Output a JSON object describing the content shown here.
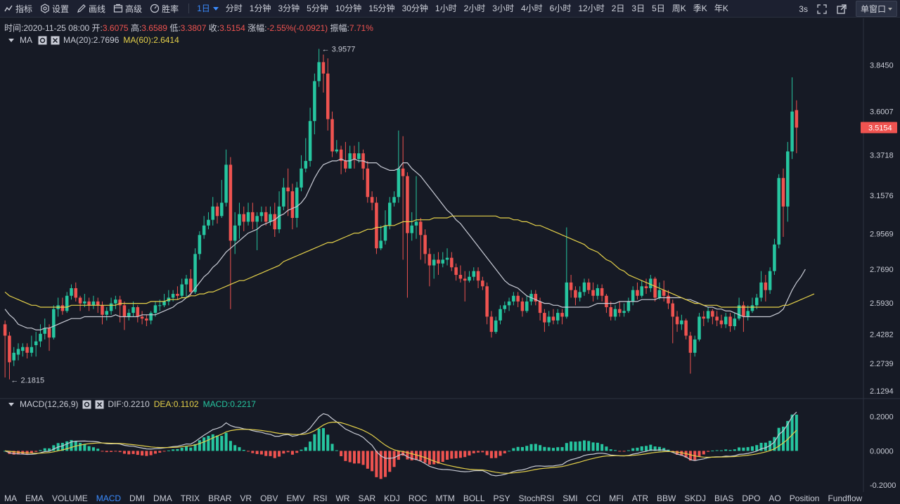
{
  "toolbar": {
    "tools": [
      {
        "label": "指标",
        "icon": "indicator-icon"
      },
      {
        "label": "设置",
        "icon": "settings-icon"
      },
      {
        "label": "画线",
        "icon": "draw-line-icon"
      },
      {
        "label": "高级",
        "icon": "advanced-icon"
      },
      {
        "label": "胜率",
        "icon": "win-rate-icon"
      }
    ],
    "active_interval": "1日",
    "intervals": [
      "分时",
      "1分钟",
      "3分钟",
      "5分钟",
      "10分钟",
      "15分钟",
      "30分钟",
      "1小时",
      "2小时",
      "3小时",
      "4小时",
      "6小时",
      "12小时",
      "2日",
      "3日",
      "5日",
      "周K",
      "季K",
      "年K"
    ],
    "refresh": "3s",
    "window_mode": "单窗口"
  },
  "info": {
    "time_label": "时间:",
    "time": "2020-11-25 08:00",
    "open_label": "开:",
    "open": "3.6075",
    "high_label": "高:",
    "high": "3.6589",
    "low_label": "低:",
    "low": "3.3807",
    "close_label": "收:",
    "close": "3.5154",
    "change_label": "涨幅:",
    "change": "-2.55%(-0.0921)",
    "amp_label": "振幅:",
    "amp": "7.71%"
  },
  "ma_legend": {
    "name": "MA",
    "ma20": "MA(20):2.7696",
    "ma60": "MA(60):2.6414"
  },
  "macd_legend": {
    "name": "MACD(12,26,9)",
    "dif": "DIF:0.2210",
    "dea": "DEA:0.1102",
    "macd": "MACD:0.2217"
  },
  "price_axis": {
    "ticks": [
      "3.8450",
      "3.6007",
      "3.3718",
      "3.1576",
      "2.9569",
      "2.7690",
      "2.5930",
      "2.4282",
      "2.2739",
      "2.1294"
    ],
    "current": "3.5154"
  },
  "macd_axis": {
    "ticks": [
      "0.2000",
      "0.0000",
      "-0.2000"
    ]
  },
  "annotations": {
    "high": "3.9577",
    "low": "2.1815"
  },
  "colors": {
    "up": "#26c6a0",
    "down": "#ef5350",
    "ma20": "#c9ccd6",
    "ma60": "#e5d14a",
    "accent": "#3b8cff",
    "background": "#161a25"
  },
  "chart_data": {
    "type": "candlestick",
    "candles": [
      [
        2.48,
        2.42,
        2.5,
        2.2
      ],
      [
        2.42,
        2.28,
        2.44,
        2.19
      ],
      [
        2.29,
        2.33,
        2.36,
        2.26
      ],
      [
        2.32,
        2.35,
        2.38,
        2.29
      ],
      [
        2.34,
        2.36,
        2.38,
        2.31
      ],
      [
        2.36,
        2.33,
        2.38,
        2.3
      ],
      [
        2.33,
        2.36,
        2.42,
        2.31
      ],
      [
        2.37,
        2.39,
        2.44,
        2.31
      ],
      [
        2.39,
        2.43,
        2.48,
        2.36
      ],
      [
        2.43,
        2.46,
        2.51,
        2.4
      ],
      [
        2.46,
        2.41,
        2.48,
        2.34
      ],
      [
        2.41,
        2.56,
        2.58,
        2.4
      ],
      [
        2.56,
        2.58,
        2.62,
        2.52
      ],
      [
        2.58,
        2.55,
        2.62,
        2.53
      ],
      [
        2.55,
        2.63,
        2.65,
        2.54
      ],
      [
        2.63,
        2.67,
        2.69,
        2.61
      ],
      [
        2.67,
        2.62,
        2.7,
        2.6
      ],
      [
        2.62,
        2.59,
        2.63,
        2.55
      ],
      [
        2.59,
        2.6,
        2.64,
        2.57
      ],
      [
        2.6,
        2.58,
        2.62,
        2.55
      ],
      [
        2.58,
        2.6,
        2.63,
        2.56
      ],
      [
        2.6,
        2.58,
        2.62,
        2.54
      ],
      [
        2.58,
        2.53,
        2.6,
        2.48
      ],
      [
        2.53,
        2.55,
        2.57,
        2.5
      ],
      [
        2.55,
        2.59,
        2.62,
        2.53
      ],
      [
        2.59,
        2.61,
        2.63,
        2.56
      ],
      [
        2.61,
        2.58,
        2.63,
        2.49
      ],
      [
        2.58,
        2.52,
        2.6,
        2.45
      ],
      [
        2.52,
        2.54,
        2.56,
        2.5
      ],
      [
        2.54,
        2.57,
        2.6,
        2.52
      ],
      [
        2.57,
        2.52,
        2.58,
        2.49
      ],
      [
        2.52,
        2.51,
        2.55,
        2.48
      ],
      [
        2.51,
        2.5,
        2.53,
        2.47
      ],
      [
        2.5,
        2.54,
        2.55,
        2.48
      ],
      [
        2.54,
        2.58,
        2.6,
        2.52
      ],
      [
        2.58,
        2.58,
        2.61,
        2.55
      ],
      [
        2.58,
        2.6,
        2.64,
        2.57
      ],
      [
        2.6,
        2.62,
        2.66,
        2.58
      ],
      [
        2.62,
        2.64,
        2.66,
        2.6
      ],
      [
        2.64,
        2.63,
        2.68,
        2.61
      ],
      [
        2.63,
        2.69,
        2.72,
        2.62
      ],
      [
        2.69,
        2.72,
        2.74,
        2.62
      ],
      [
        2.72,
        2.65,
        2.77,
        2.63
      ],
      [
        2.65,
        2.85,
        2.88,
        2.64
      ],
      [
        2.85,
        2.95,
        2.97,
        2.82
      ],
      [
        2.95,
        3.0,
        3.05,
        2.93
      ],
      [
        3.0,
        3.03,
        3.07,
        2.98
      ],
      [
        3.03,
        3.1,
        3.15,
        3.0
      ],
      [
        3.1,
        3.05,
        3.12,
        3.01
      ],
      [
        3.05,
        3.12,
        3.24,
        3.04
      ],
      [
        3.12,
        3.32,
        3.4,
        3.1
      ],
      [
        3.32,
        2.92,
        3.36,
        2.56
      ],
      [
        2.92,
        3.0,
        3.07,
        2.85
      ],
      [
        3.0,
        3.06,
        3.12,
        2.93
      ],
      [
        3.06,
        3.02,
        3.1,
        2.97
      ],
      [
        3.02,
        3.07,
        3.12,
        3.0
      ],
      [
        3.07,
        3.02,
        3.12,
        2.98
      ],
      [
        3.02,
        3.05,
        3.07,
        2.87
      ],
      [
        3.05,
        3.07,
        3.1,
        3.02
      ],
      [
        3.07,
        3.02,
        3.1,
        3.0
      ],
      [
        3.02,
        3.06,
        3.1,
        3.0
      ],
      [
        3.06,
        2.98,
        3.12,
        2.94
      ],
      [
        2.98,
        3.1,
        3.18,
        2.96
      ],
      [
        3.1,
        3.2,
        3.25,
        3.08
      ],
      [
        3.2,
        3.18,
        3.3,
        3.05
      ],
      [
        3.18,
        3.04,
        3.22,
        2.98
      ],
      [
        3.04,
        3.2,
        3.23,
        2.99
      ],
      [
        3.2,
        3.3,
        3.37,
        3.18
      ],
      [
        3.3,
        3.34,
        3.46,
        3.28
      ],
      [
        3.34,
        3.55,
        3.62,
        3.31
      ],
      [
        3.55,
        3.76,
        3.8,
        3.48
      ],
      [
        3.76,
        3.86,
        3.93,
        3.73
      ],
      [
        3.86,
        3.8,
        3.9,
        3.7
      ],
      [
        3.8,
        3.56,
        3.88,
        3.5
      ],
      [
        3.56,
        3.39,
        3.6,
        3.36
      ],
      [
        3.39,
        3.4,
        3.45,
        3.38
      ],
      [
        3.4,
        3.34,
        3.42,
        3.27
      ],
      [
        3.34,
        3.3,
        3.44,
        3.28
      ],
      [
        3.3,
        3.38,
        3.42,
        3.3
      ],
      [
        3.38,
        3.35,
        3.42,
        3.3
      ],
      [
        3.35,
        3.38,
        3.44,
        3.33
      ],
      [
        3.38,
        3.3,
        3.4,
        3.24
      ],
      [
        3.3,
        3.15,
        3.34,
        3.12
      ],
      [
        3.15,
        3.12,
        3.18,
        3.08
      ],
      [
        3.12,
        2.88,
        3.15,
        2.85
      ],
      [
        2.88,
        2.92,
        3.0,
        2.87
      ],
      [
        2.92,
        3.0,
        3.08,
        2.9
      ],
      [
        3.0,
        3.12,
        3.15,
        2.98
      ],
      [
        3.12,
        3.15,
        3.18,
        3.1
      ],
      [
        3.15,
        3.3,
        3.5,
        3.12
      ],
      [
        3.3,
        3.26,
        3.47,
        2.82
      ],
      [
        3.26,
        2.96,
        3.28,
        2.62
      ],
      [
        2.96,
        3.0,
        3.07,
        2.92
      ],
      [
        3.0,
        3.02,
        3.26,
        2.93
      ],
      [
        3.02,
        2.95,
        3.04,
        2.82
      ],
      [
        2.95,
        2.85,
        2.98,
        2.8
      ],
      [
        2.85,
        2.79,
        2.88,
        2.68
      ],
      [
        2.79,
        2.82,
        2.85,
        2.72
      ],
      [
        2.82,
        2.8,
        2.86,
        2.74
      ],
      [
        2.8,
        2.82,
        2.86,
        2.78
      ],
      [
        2.82,
        2.83,
        2.88,
        2.79
      ],
      [
        2.83,
        2.78,
        2.86,
        2.76
      ],
      [
        2.78,
        2.74,
        2.8,
        2.71
      ],
      [
        2.74,
        2.72,
        2.79,
        2.7
      ],
      [
        2.72,
        2.71,
        2.76,
        2.6
      ],
      [
        2.71,
        2.73,
        2.76,
        2.7
      ],
      [
        2.73,
        2.76,
        2.78,
        2.71
      ],
      [
        2.76,
        2.71,
        2.78,
        2.67
      ],
      [
        2.71,
        2.68,
        2.73,
        2.66
      ],
      [
        2.68,
        2.52,
        2.7,
        2.48
      ],
      [
        2.52,
        2.44,
        2.55,
        2.41
      ],
      [
        2.44,
        2.5,
        2.52,
        2.43
      ],
      [
        2.5,
        2.56,
        2.58,
        2.48
      ],
      [
        2.56,
        2.58,
        2.6,
        2.54
      ],
      [
        2.58,
        2.6,
        2.62,
        2.55
      ],
      [
        2.6,
        2.63,
        2.65,
        2.58
      ],
      [
        2.63,
        2.6,
        2.65,
        2.57
      ],
      [
        2.6,
        2.55,
        2.62,
        2.52
      ],
      [
        2.55,
        2.6,
        2.63,
        2.54
      ],
      [
        2.6,
        2.64,
        2.66,
        2.58
      ],
      [
        2.64,
        2.6,
        2.66,
        2.58
      ],
      [
        2.6,
        2.54,
        2.62,
        2.5
      ],
      [
        2.54,
        2.49,
        2.56,
        2.44
      ],
      [
        2.49,
        2.52,
        2.55,
        2.47
      ],
      [
        2.52,
        2.5,
        2.56,
        2.48
      ],
      [
        2.5,
        2.54,
        2.56,
        2.48
      ],
      [
        2.54,
        2.52,
        2.56,
        2.48
      ],
      [
        2.52,
        2.7,
        2.99,
        2.51
      ],
      [
        2.7,
        2.66,
        2.74,
        2.62
      ],
      [
        2.66,
        2.62,
        2.68,
        2.58
      ],
      [
        2.62,
        2.65,
        2.68,
        2.6
      ],
      [
        2.65,
        2.7,
        2.72,
        2.63
      ],
      [
        2.7,
        2.66,
        2.72,
        2.64
      ],
      [
        2.66,
        2.63,
        2.7,
        2.6
      ],
      [
        2.63,
        2.67,
        2.69,
        2.61
      ],
      [
        2.67,
        2.63,
        2.69,
        2.6
      ],
      [
        2.63,
        2.57,
        2.64,
        2.54
      ],
      [
        2.57,
        2.52,
        2.6,
        2.5
      ],
      [
        2.52,
        2.56,
        2.58,
        2.5
      ],
      [
        2.56,
        2.54,
        2.6,
        2.52
      ],
      [
        2.54,
        2.55,
        2.59,
        2.52
      ],
      [
        2.55,
        2.6,
        2.62,
        2.54
      ],
      [
        2.6,
        2.66,
        2.68,
        2.58
      ],
      [
        2.66,
        2.63,
        2.7,
        2.61
      ],
      [
        2.63,
        2.68,
        2.71,
        2.62
      ],
      [
        2.68,
        2.67,
        2.72,
        2.64
      ],
      [
        2.67,
        2.72,
        2.74,
        2.65
      ],
      [
        2.72,
        2.62,
        2.73,
        2.6
      ],
      [
        2.62,
        2.66,
        2.7,
        2.61
      ],
      [
        2.66,
        2.63,
        2.71,
        2.6
      ],
      [
        2.63,
        2.59,
        2.66,
        2.56
      ],
      [
        2.59,
        2.52,
        2.61,
        2.38
      ],
      [
        2.52,
        2.48,
        2.55,
        2.44
      ],
      [
        2.48,
        2.5,
        2.53,
        2.45
      ],
      [
        2.5,
        2.42,
        2.51,
        2.4
      ],
      [
        2.42,
        2.33,
        2.44,
        2.22
      ],
      [
        2.33,
        2.4,
        2.42,
        2.31
      ],
      [
        2.4,
        2.52,
        2.54,
        2.39
      ],
      [
        2.52,
        2.51,
        2.55,
        2.47
      ],
      [
        2.51,
        2.55,
        2.57,
        2.49
      ],
      [
        2.55,
        2.52,
        2.56,
        2.48
      ],
      [
        2.52,
        2.5,
        2.55,
        2.47
      ],
      [
        2.5,
        2.48,
        2.53,
        2.46
      ],
      [
        2.48,
        2.52,
        2.54,
        2.46
      ],
      [
        2.52,
        2.47,
        2.54,
        2.44
      ],
      [
        2.47,
        2.51,
        2.54,
        2.45
      ],
      [
        2.51,
        2.58,
        2.62,
        2.5
      ],
      [
        2.58,
        2.52,
        2.6,
        2.44
      ],
      [
        2.52,
        2.55,
        2.58,
        2.5
      ],
      [
        2.55,
        2.58,
        2.62,
        2.54
      ],
      [
        2.58,
        2.62,
        2.64,
        2.56
      ],
      [
        2.62,
        2.7,
        2.76,
        2.6
      ],
      [
        2.7,
        2.66,
        2.74,
        2.6
      ],
      [
        2.66,
        2.76,
        2.78,
        2.64
      ],
      [
        2.76,
        2.9,
        2.93,
        2.74
      ],
      [
        2.9,
        3.25,
        3.27,
        2.88
      ],
      [
        3.25,
        3.1,
        3.3,
        2.94
      ],
      [
        3.1,
        3.39,
        3.44,
        3.02
      ],
      [
        3.39,
        3.6,
        3.78,
        3.35
      ],
      [
        3.6075,
        3.5154,
        3.6589,
        3.3807
      ]
    ],
    "ma20": [
      2.56,
      2.53,
      2.51,
      2.48,
      2.47,
      2.46,
      2.46,
      2.45,
      2.45,
      2.46,
      2.46,
      2.47,
      2.48,
      2.49,
      2.5,
      2.51,
      2.51,
      2.51,
      2.52,
      2.52,
      2.52,
      2.52,
      2.52,
      2.52,
      2.52,
      2.53,
      2.52,
      2.52,
      2.52,
      2.52,
      2.52,
      2.53,
      2.53,
      2.53,
      2.53,
      2.54,
      2.55,
      2.56,
      2.57,
      2.59,
      2.6,
      2.62,
      2.64,
      2.67,
      2.7,
      2.73,
      2.75,
      2.78,
      2.8,
      2.83,
      2.86,
      2.88,
      2.9,
      2.92,
      2.94,
      2.96,
      2.97,
      2.98,
      3.0,
      3.01,
      3.02,
      3.03,
      3.05,
      3.06,
      3.08,
      3.09,
      3.1,
      3.12,
      3.15,
      3.2,
      3.25,
      3.29,
      3.32,
      3.33,
      3.34,
      3.34,
      3.35,
      3.34,
      3.34,
      3.35,
      3.34,
      3.34,
      3.33,
      3.33,
      3.33,
      3.31,
      3.3,
      3.29,
      3.29,
      3.3,
      3.33,
      3.33,
      3.3,
      3.28,
      3.26,
      3.23,
      3.2,
      3.17,
      3.14,
      3.11,
      3.08,
      3.06,
      3.03,
      3.01,
      2.98,
      2.95,
      2.92,
      2.89,
      2.86,
      2.83,
      2.8,
      2.77,
      2.74,
      2.71,
      2.69,
      2.68,
      2.67,
      2.65,
      2.63,
      2.62,
      2.61,
      2.6,
      2.59,
      2.59,
      2.58,
      2.58,
      2.57,
      2.57,
      2.57,
      2.57,
      2.57,
      2.57,
      2.57,
      2.58,
      2.59,
      2.59,
      2.59,
      2.59,
      2.59,
      2.6,
      2.6,
      2.6,
      2.6,
      2.6,
      2.61,
      2.61,
      2.61,
      2.61,
      2.62,
      2.62,
      2.62,
      2.62,
      2.62,
      2.62,
      2.61,
      2.61,
      2.6,
      2.59,
      2.58,
      2.57,
      2.57,
      2.56,
      2.56,
      2.55,
      2.55,
      2.54,
      2.53,
      2.52,
      2.52,
      2.52,
      2.52,
      2.52,
      2.52,
      2.52,
      2.53,
      2.54,
      2.56,
      2.61,
      2.66,
      2.7,
      2.73,
      2.77
    ],
    "ma60": [
      2.65,
      2.63,
      2.62,
      2.61,
      2.6,
      2.59,
      2.58,
      2.58,
      2.57,
      2.57,
      2.57,
      2.57,
      2.57,
      2.57,
      2.57,
      2.58,
      2.58,
      2.58,
      2.58,
      2.58,
      2.58,
      2.58,
      2.58,
      2.58,
      2.58,
      2.58,
      2.59,
      2.59,
      2.59,
      2.59,
      2.59,
      2.59,
      2.59,
      2.6,
      2.6,
      2.6,
      2.6,
      2.61,
      2.61,
      2.61,
      2.62,
      2.62,
      2.63,
      2.63,
      2.64,
      2.64,
      2.65,
      2.65,
      2.66,
      2.67,
      2.68,
      2.69,
      2.7,
      2.71,
      2.71,
      2.72,
      2.73,
      2.74,
      2.75,
      2.76,
      2.77,
      2.78,
      2.79,
      2.81,
      2.82,
      2.83,
      2.84,
      2.85,
      2.86,
      2.87,
      2.88,
      2.89,
      2.9,
      2.91,
      2.91,
      2.92,
      2.93,
      2.94,
      2.95,
      2.96,
      2.96,
      2.97,
      2.98,
      2.98,
      2.99,
      2.99,
      3.0,
      3.0,
      3.0,
      3.01,
      3.02,
      3.02,
      3.02,
      3.03,
      3.03,
      3.03,
      3.03,
      3.04,
      3.04,
      3.04,
      3.04,
      3.05,
      3.05,
      3.05,
      3.05,
      3.05,
      3.05,
      3.05,
      3.05,
      3.05,
      3.05,
      3.05,
      3.04,
      3.04,
      3.04,
      3.03,
      3.03,
      3.02,
      3.02,
      3.01,
      3.0,
      3.0,
      2.99,
      2.98,
      2.97,
      2.96,
      2.95,
      2.94,
      2.93,
      2.92,
      2.91,
      2.9,
      2.88,
      2.87,
      2.86,
      2.84,
      2.82,
      2.81,
      2.79,
      2.77,
      2.76,
      2.74,
      2.73,
      2.72,
      2.71,
      2.7,
      2.69,
      2.68,
      2.67,
      2.66,
      2.65,
      2.64,
      2.63,
      2.62,
      2.61,
      2.6,
      2.59,
      2.59,
      2.58,
      2.58,
      2.58,
      2.58,
      2.57,
      2.57,
      2.57,
      2.57,
      2.57,
      2.57,
      2.57,
      2.57,
      2.57,
      2.57,
      2.57,
      2.57,
      2.57,
      2.57,
      2.58,
      2.58,
      2.59,
      2.6,
      2.61,
      2.62,
      2.63,
      2.64
    ],
    "price_range": [
      2.1,
      3.98
    ],
    "macd_range": [
      -0.24,
      0.26
    ]
  },
  "tabs": {
    "active": "MACD",
    "items": [
      "MA",
      "EMA",
      "VOLUME",
      "MACD",
      "DMI",
      "DMA",
      "TRIX",
      "BRAR",
      "VR",
      "OBV",
      "EMV",
      "RSI",
      "WR",
      "SAR",
      "KDJ",
      "ROC",
      "MTM",
      "BOLL",
      "PSY",
      "StochRSI",
      "SMI",
      "CCI",
      "MFI",
      "ATR",
      "BBW",
      "SKDJ",
      "BIAS",
      "DPO",
      "AO",
      "Position",
      "Fundflow"
    ]
  }
}
